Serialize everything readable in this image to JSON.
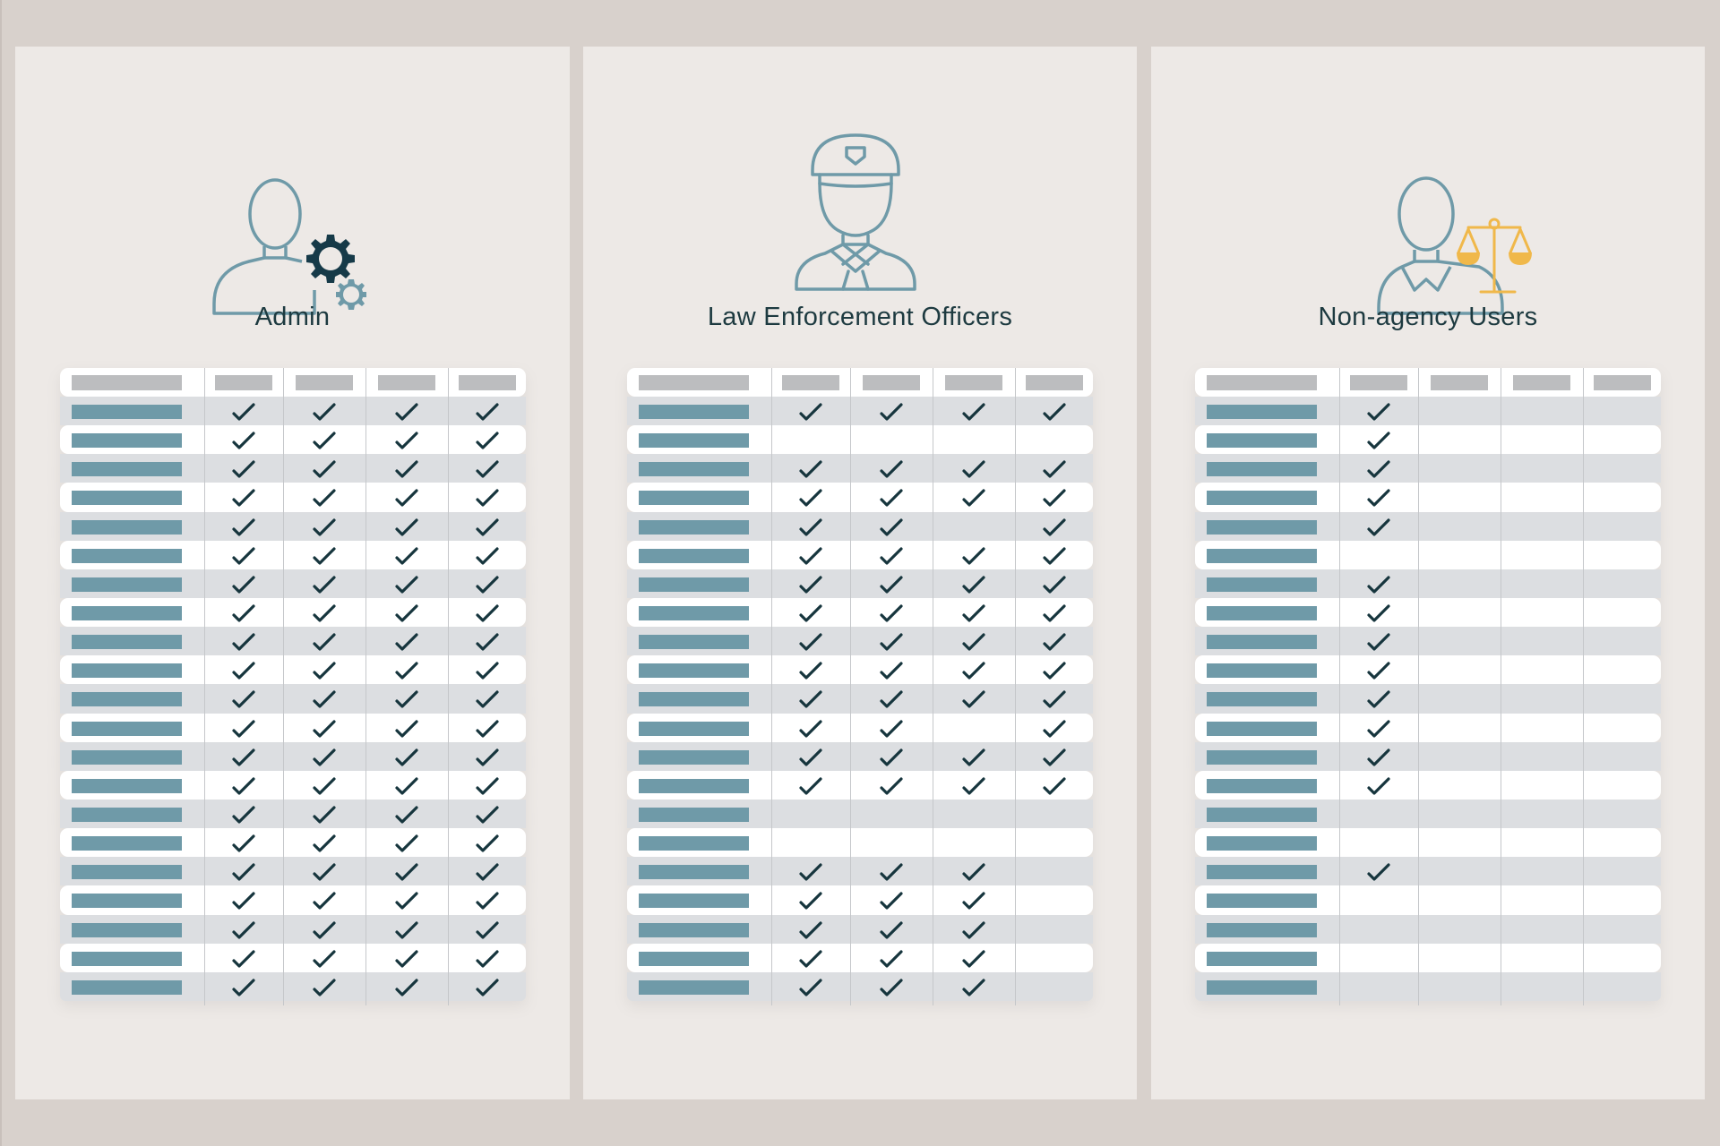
{
  "colors": {
    "background": "#d8d1cc",
    "panel": "#ede9e6",
    "icon_teal": "#6f9aa8",
    "gear_dark": "#163a48",
    "scale_gold": "#f0b84a",
    "title_text": "#1d3a40",
    "row_label_bar": "#6f9aa8",
    "header_bar": "#bcbdbf",
    "row_stripe": "#dcdee1",
    "check": "#16353d"
  },
  "panels": [
    {
      "id": "admin",
      "title": "Admin",
      "icon": "admin-user-gears-icon",
      "columns": 4,
      "rows": [
        [
          1,
          1,
          1,
          1
        ],
        [
          1,
          1,
          1,
          1
        ],
        [
          1,
          1,
          1,
          1
        ],
        [
          1,
          1,
          1,
          1
        ],
        [
          1,
          1,
          1,
          1
        ],
        [
          1,
          1,
          1,
          1
        ],
        [
          1,
          1,
          1,
          1
        ],
        [
          1,
          1,
          1,
          1
        ],
        [
          1,
          1,
          1,
          1
        ],
        [
          1,
          1,
          1,
          1
        ],
        [
          1,
          1,
          1,
          1
        ],
        [
          1,
          1,
          1,
          1
        ],
        [
          1,
          1,
          1,
          1
        ],
        [
          1,
          1,
          1,
          1
        ],
        [
          1,
          1,
          1,
          1
        ],
        [
          1,
          1,
          1,
          1
        ],
        [
          1,
          1,
          1,
          1
        ],
        [
          1,
          1,
          1,
          1
        ],
        [
          1,
          1,
          1,
          1
        ],
        [
          1,
          1,
          1,
          1
        ],
        [
          1,
          1,
          1,
          1
        ]
      ]
    },
    {
      "id": "law-enforcement",
      "title": "Law Enforcement Officers",
      "icon": "police-officer-icon",
      "columns": 4,
      "rows": [
        [
          1,
          1,
          1,
          1
        ],
        [
          0,
          0,
          0,
          0
        ],
        [
          1,
          1,
          1,
          1
        ],
        [
          1,
          1,
          1,
          1
        ],
        [
          1,
          1,
          0,
          1
        ],
        [
          1,
          1,
          1,
          1
        ],
        [
          1,
          1,
          1,
          1
        ],
        [
          1,
          1,
          1,
          1
        ],
        [
          1,
          1,
          1,
          1
        ],
        [
          1,
          1,
          1,
          1
        ],
        [
          1,
          1,
          1,
          1
        ],
        [
          1,
          1,
          0,
          1
        ],
        [
          1,
          1,
          1,
          1
        ],
        [
          1,
          1,
          1,
          1
        ],
        [
          0,
          0,
          0,
          0
        ],
        [
          0,
          0,
          0,
          0
        ],
        [
          1,
          1,
          1,
          0
        ],
        [
          1,
          1,
          1,
          0
        ],
        [
          1,
          1,
          1,
          0
        ],
        [
          1,
          1,
          1,
          0
        ],
        [
          1,
          1,
          1,
          0
        ]
      ]
    },
    {
      "id": "non-agency",
      "title": "Non-agency Users",
      "icon": "user-justice-scale-icon",
      "columns": 4,
      "rows": [
        [
          1,
          0,
          0,
          0
        ],
        [
          1,
          0,
          0,
          0
        ],
        [
          1,
          0,
          0,
          0
        ],
        [
          1,
          0,
          0,
          0
        ],
        [
          1,
          0,
          0,
          0
        ],
        [
          0,
          0,
          0,
          0
        ],
        [
          1,
          0,
          0,
          0
        ],
        [
          1,
          0,
          0,
          0
        ],
        [
          1,
          0,
          0,
          0
        ],
        [
          1,
          0,
          0,
          0
        ],
        [
          1,
          0,
          0,
          0
        ],
        [
          1,
          0,
          0,
          0
        ],
        [
          1,
          0,
          0,
          0
        ],
        [
          1,
          0,
          0,
          0
        ],
        [
          0,
          0,
          0,
          0
        ],
        [
          0,
          0,
          0,
          0
        ],
        [
          1,
          0,
          0,
          0
        ],
        [
          0,
          0,
          0,
          0
        ],
        [
          0,
          0,
          0,
          0
        ],
        [
          0,
          0,
          0,
          0
        ],
        [
          0,
          0,
          0,
          0
        ]
      ]
    }
  ]
}
